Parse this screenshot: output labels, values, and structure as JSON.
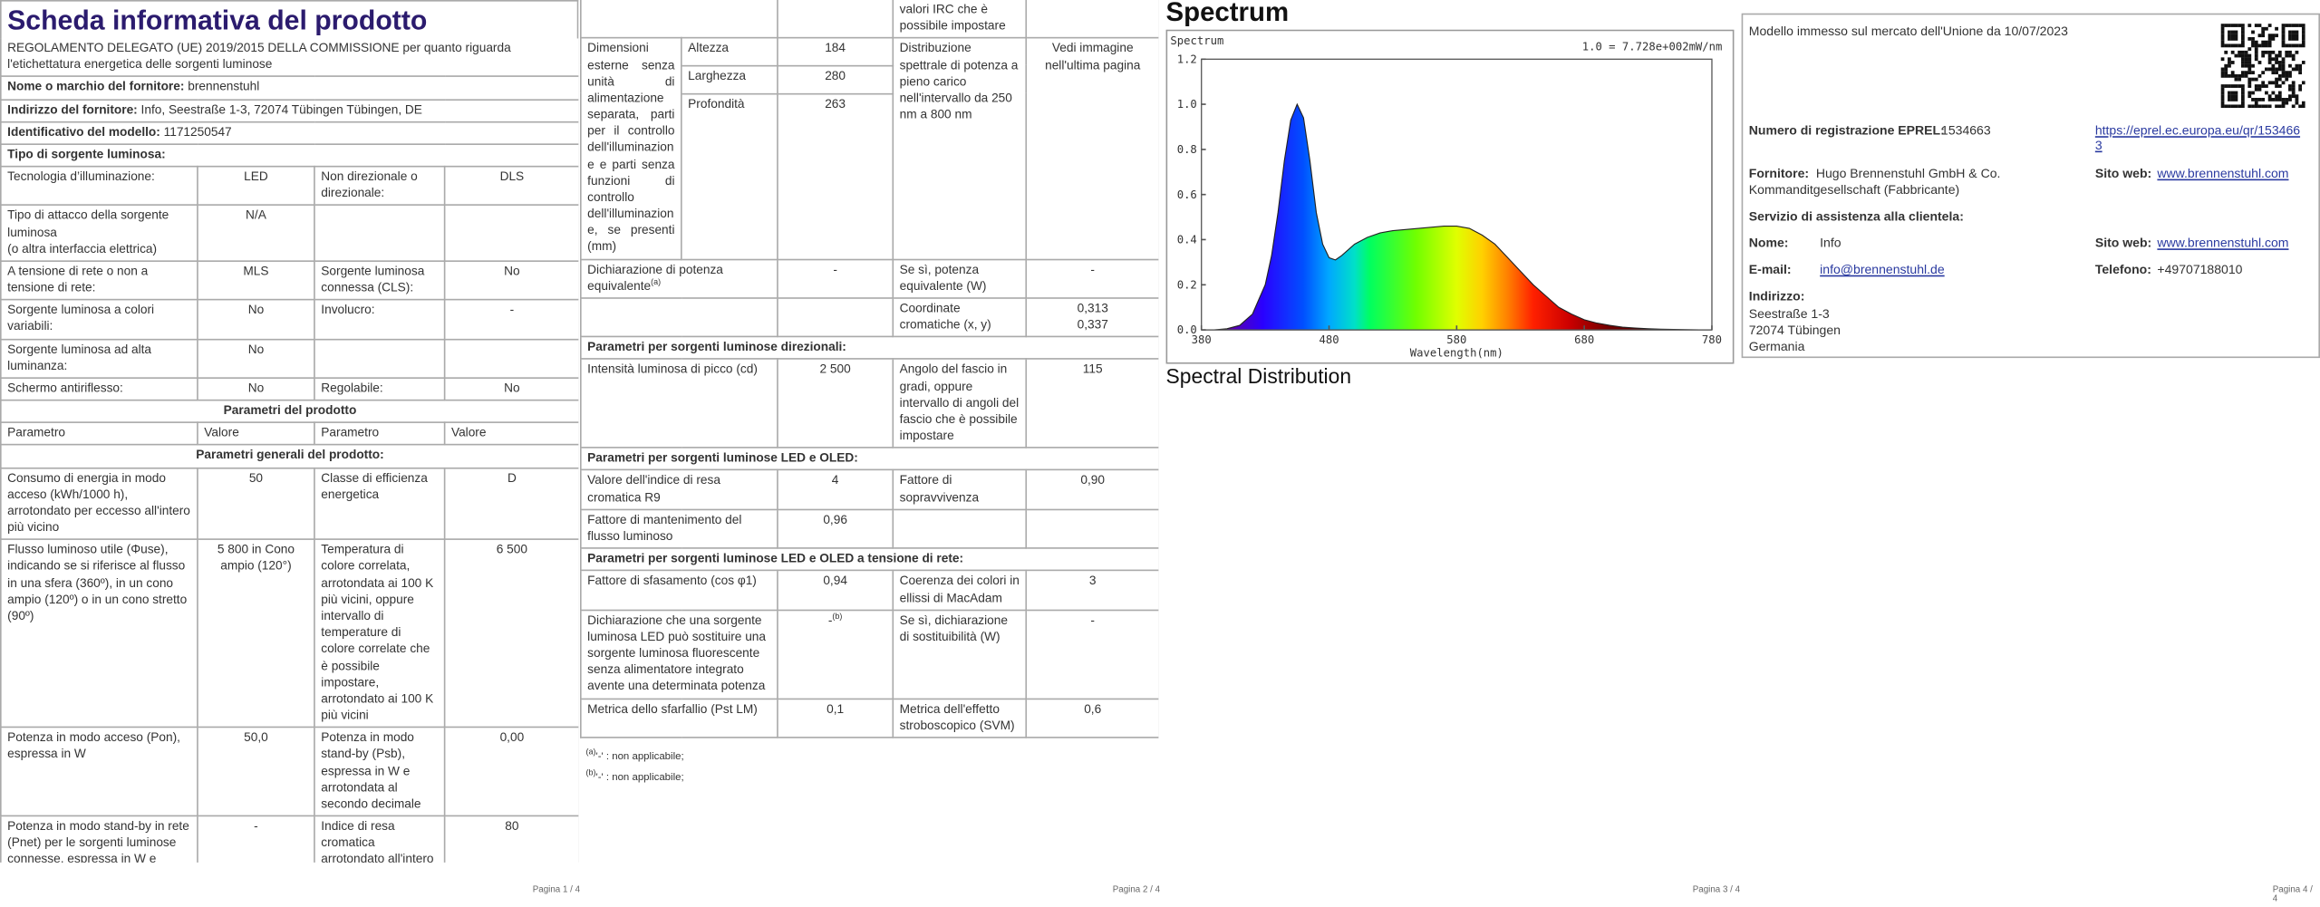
{
  "pages": [
    {
      "title": "Scheda informativa del prodotto",
      "regulation": "REGOLAMENTO DELEGATO (UE) 2019/2015 DELLA COMMISSIONE per quanto riguarda l'etichettatura energetica delle sorgenti luminose",
      "supplier_name": {
        "label": "Nome o marchio del fornitore:",
        "value": "brennenstuhl"
      },
      "supplier_address": {
        "label": "Indirizzo del fornitore:",
        "value": "Info, Seestraße 1-3, 72074 Tübingen Tübingen, DE"
      },
      "model_id": {
        "label": "Identificativo del modello:",
        "value": "1171250547"
      },
      "light_source_type": "Tipo di sorgente luminosa:",
      "type_rows": [
        [
          "Tecnologia d’illuminazione:",
          "LED",
          "Non direzionale o direzionale:",
          "DLS"
        ],
        [
          "Tipo di attacco della sorgente luminosa\n(o altra interfaccia elettrica)",
          "N/A"
        ],
        [
          "A tensione di rete o non a tensione di rete:",
          "MLS",
          "Sorgente luminosa connessa (CLS):",
          "No"
        ],
        [
          "Sorgente luminosa a colori variabili:",
          "No",
          "Involucro:",
          "-"
        ],
        [
          "Sorgente luminosa ad alta luminanza:",
          "No"
        ],
        [
          "Schermo antiriflesso:",
          "No",
          "Regolabile:",
          "No"
        ]
      ],
      "parameters_title": "Parametri del prodotto",
      "parameters_header": [
        "Parametro",
        "Valore",
        "Parametro",
        "Valore"
      ],
      "general_title": "Parametri generali del prodotto:",
      "general_rows": [
        [
          "Consumo di energia in modo acceso (kWh/1000 h), arrotondato per eccesso all'intero più vicino",
          "50",
          "Classe di efficienza energetica",
          "D"
        ],
        [
          "Flusso luminoso utile (Φuse), indicando se si riferisce al flusso in una sfera (360º), in un cono ampio (120º) o in un cono stretto (90º)",
          "5 800 in Cono ampio (120°)",
          "Temperatura di colore correlata, arrotondata ai 100 K più vicini, oppure intervallo di temperature di colore correlate che è possibile impostare, arrotondato ai 100 K più vicini",
          "6 500"
        ],
        [
          "Potenza in modo acceso (Pon), espressa in W",
          "50,0",
          "Potenza in modo stand-by (Psb), espressa in W e arrotondata al secondo decimale",
          "0,00"
        ],
        [
          "Potenza in modo stand-by in rete (Pnet) per le sorgenti luminose connesse, espressa in W e arrotondata al secondo decimale",
          "-",
          "Indice di resa cromatica arrotondato all'intero più vicino, oppure intervallo di",
          "80"
        ]
      ],
      "footer": "Pagina 1 / 4"
    },
    {
      "irc_continued": "valori IRC che è possibile impostare",
      "dimensions": {
        "label": "Dimensioni esterne senza unità di alimentazione separata, parti per il controllo dell'illuminazione e parti senza funzioni di controllo dell'illuminazione, se presenti (mm)",
        "height": {
          "label": "Altezza",
          "value": "184"
        },
        "width": {
          "label": "Larghezza",
          "value": "280"
        },
        "depth": {
          "label": "Profondità",
          "value": "263"
        }
      },
      "spectral": {
        "label": "Distribuzione spettrale di potenza a pieno carico nell'intervallo da 250 nm a 800 nm",
        "value": "Vedi immagine nell'ultima pagina"
      },
      "equivalent_power": {
        "label": "Dichiarazione di potenza equivalente",
        "note": "(a)",
        "value": "-",
        "if_yes_label": "Se sì, potenza equivalente (W)",
        "if_yes_value": "-"
      },
      "chromaticity": {
        "label": "Coordinate cromatiche (x, y)",
        "x": "0,313",
        "y": "0,337"
      },
      "directional_title": "Parametri per sorgenti luminose direzionali:",
      "directional_rows": [
        [
          "Intensità luminosa di picco (cd)",
          "2 500",
          "Angolo del fascio in gradi, oppure intervallo di angoli del fascio che è possibile impostare",
          "115"
        ]
      ],
      "led_title": "Parametri per sorgenti luminose LED e OLED:",
      "led_rows": [
        [
          "Valore dell'indice di resa cromatica R9",
          "4",
          "Fattore di sopravvivenza",
          "0,90"
        ],
        [
          "Fattore di mantenimento del flusso luminoso",
          "0,96"
        ]
      ],
      "mains_title": "Parametri per sorgenti luminose LED e OLED a tensione di rete:",
      "mains_rows": [
        [
          "Fattore di sfasamento (cos φ1)",
          "0,94",
          "Coerenza dei colori in ellissi di MacAdam",
          "3"
        ],
        [
          "Dichiarazione che una sorgente luminosa LED può sostituire una sorgente luminosa fluorescente senza alimentatore integrato avente una determinata potenza",
          "-",
          "Se sì, dichiarazione di sostituibilità (W)",
          "-"
        ],
        [
          "Metrica dello sfarfallio (Pst LM)",
          "0,1",
          "Metrica dell'effetto stroboscopico (SVM)",
          "0,6"
        ]
      ],
      "mains_note": "(b)",
      "notes": [
        {
          "mark": "(a)",
          "text": "'-' : non applicabile;"
        },
        {
          "mark": "(b)",
          "text": "'-' : non applicabile;"
        }
      ],
      "footer": "Pagina 2 / 4"
    },
    {
      "heading": "Spectrum",
      "caption": "Spectral Distribution",
      "footer": "Pagina 3 / 4"
    },
    {
      "market_date": "Modello immesso sul mercato dell'Unione da 10/07/2023",
      "eprel": {
        "label": "Numero di registrazione EPREL:",
        "value": "1534663",
        "link": "https://eprel.ec.europa.eu/qr/1534663"
      },
      "supplier": {
        "label": "Fornitore:",
        "value": "Hugo Brennenstuhl GmbH & Co. Kommanditgesellschaft (Fabbricante)"
      },
      "website": {
        "label": "Sito web:",
        "value": "www.brennenstuhl.com"
      },
      "customer_service_title": "Servizio di assistenza alla clientela:",
      "contact_name": {
        "label": "Nome:",
        "value": "Info"
      },
      "contact_website": {
        "label": "Sito web:",
        "value": "www.brennenstuhl.com"
      },
      "email": {
        "label": "E-mail:",
        "value": "info@brennenstuhl.de"
      },
      "phone": {
        "label": "Telefono:",
        "value": "+49707188010"
      },
      "address": {
        "label": "Indirizzo:",
        "lines": [
          "Seestraße 1-3",
          "72074 Tübingen",
          "Germania"
        ]
      },
      "footer": "Pagina 4 / 4"
    }
  ],
  "chart_data": {
    "type": "area",
    "title": "Spectrum",
    "note": "1.0 = 7.728e+002mW/nm",
    "xlabel": "Wavelength(nm)",
    "x": [
      380,
      390,
      400,
      410,
      420,
      430,
      435,
      440,
      445,
      450,
      455,
      460,
      465,
      470,
      475,
      480,
      485,
      490,
      500,
      510,
      520,
      530,
      540,
      550,
      560,
      570,
      580,
      590,
      600,
      610,
      620,
      630,
      640,
      650,
      660,
      670,
      680,
      690,
      700,
      710,
      720,
      730,
      740,
      750,
      760,
      770,
      780
    ],
    "values": [
      0,
      0,
      0.005,
      0.02,
      0.07,
      0.2,
      0.33,
      0.52,
      0.75,
      0.93,
      1.0,
      0.94,
      0.75,
      0.52,
      0.38,
      0.32,
      0.31,
      0.33,
      0.38,
      0.41,
      0.43,
      0.44,
      0.445,
      0.45,
      0.455,
      0.46,
      0.46,
      0.45,
      0.42,
      0.38,
      0.32,
      0.26,
      0.2,
      0.15,
      0.1,
      0.07,
      0.045,
      0.03,
      0.02,
      0.012,
      0.008,
      0.005,
      0.003,
      0.002,
      0.001,
      0,
      0
    ],
    "xlim": [
      380,
      780
    ],
    "ylim": [
      0,
      1.2
    ],
    "xticks": [
      380,
      480,
      580,
      680,
      780
    ],
    "yticks": [
      {
        "value": 0,
        "label": "0.0"
      },
      {
        "value": 0.2,
        "label": "0.2"
      },
      {
        "value": 0.4,
        "label": "0.4"
      },
      {
        "value": 0.6,
        "label": "0.6"
      },
      {
        "value": 0.8,
        "label": "0.8"
      },
      {
        "value": 1.0,
        "label": "1.0"
      },
      {
        "value": 1.2,
        "label": "1.2"
      }
    ],
    "color": "#222222"
  }
}
